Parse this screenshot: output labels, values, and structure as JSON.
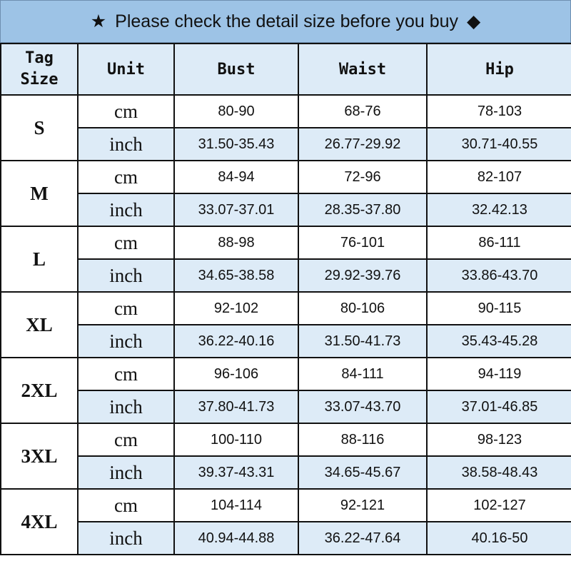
{
  "banner": {
    "star": "★",
    "text": "Please check the detail size before you buy",
    "diamond": "◆"
  },
  "headers": {
    "tag_size_line1": "Tag",
    "tag_size_line2": "Size",
    "unit": "Unit",
    "bust": "Bust",
    "waist": "Waist",
    "hip": "Hip"
  },
  "colors": {
    "banner": "#9dc3e6",
    "light_row": "#ddebf7",
    "border": "#111111"
  },
  "sizes": [
    {
      "size": "S",
      "cm": {
        "unit": "cm",
        "bust": "80-90",
        "waist": "68-76",
        "hip": "78-103"
      },
      "inch": {
        "unit": "inch",
        "bust": "31.50-35.43",
        "waist": "26.77-29.92",
        "hip": "30.71-40.55"
      }
    },
    {
      "size": "M",
      "cm": {
        "unit": "cm",
        "bust": "84-94",
        "waist": "72-96",
        "hip": "82-107"
      },
      "inch": {
        "unit": "inch",
        "bust": "33.07-37.01",
        "waist": "28.35-37.80",
        "hip": "32.42.13"
      }
    },
    {
      "size": "L",
      "cm": {
        "unit": "cm",
        "bust": "88-98",
        "waist": "76-101",
        "hip": "86-111"
      },
      "inch": {
        "unit": "inch",
        "bust": "34.65-38.58",
        "waist": "29.92-39.76",
        "hip": "33.86-43.70"
      }
    },
    {
      "size": "XL",
      "cm": {
        "unit": "cm",
        "bust": "92-102",
        "waist": "80-106",
        "hip": "90-115"
      },
      "inch": {
        "unit": "inch",
        "bust": "36.22-40.16",
        "waist": "31.50-41.73",
        "hip": "35.43-45.28"
      }
    },
    {
      "size": "2XL",
      "cm": {
        "unit": "cm",
        "bust": "96-106",
        "waist": "84-111",
        "hip": "94-119"
      },
      "inch": {
        "unit": "inch",
        "bust": "37.80-41.73",
        "waist": "33.07-43.70",
        "hip": "37.01-46.85"
      }
    },
    {
      "size": "3XL",
      "cm": {
        "unit": "cm",
        "bust": "100-110",
        "waist": "88-116",
        "hip": "98-123"
      },
      "inch": {
        "unit": "inch",
        "bust": "39.37-43.31",
        "waist": "34.65-45.67",
        "hip": "38.58-48.43"
      }
    },
    {
      "size": "4XL",
      "cm": {
        "unit": "cm",
        "bust": "104-114",
        "waist": "92-121",
        "hip": "102-127"
      },
      "inch": {
        "unit": "inch",
        "bust": "40.94-44.88",
        "waist": "36.22-47.64",
        "hip": "40.16-50"
      }
    }
  ]
}
